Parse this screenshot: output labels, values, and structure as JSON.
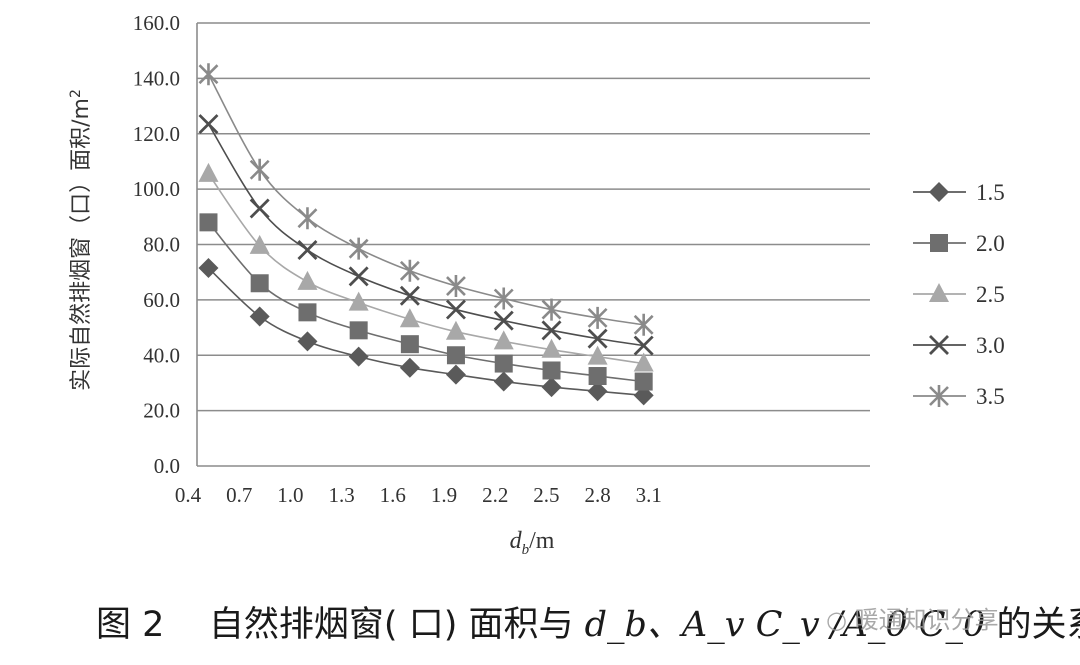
{
  "chart_data": {
    "type": "line",
    "x": [
      0.52,
      0.82,
      1.1,
      1.4,
      1.7,
      1.97,
      2.25,
      2.53,
      2.8,
      3.07
    ],
    "xticks": [
      "0.4",
      "0.7",
      "1.0",
      "1.3",
      "1.6",
      "1.9",
      "2.2",
      "2.5",
      "2.8",
      "3.1"
    ],
    "xlim": [
      0.4,
      3.1
    ],
    "ylim": [
      0,
      160
    ],
    "yticks": [
      "0.0",
      "20.0",
      "40.0",
      "60.0",
      "80.0",
      "100.0",
      "120.0",
      "140.0",
      "160.0"
    ],
    "xlabel": "d",
    "xlabel_sub": "b",
    "xlabel_unit": "/m",
    "ylabel": "实际自然排烟窗（口）面积/m",
    "ylabel_sup": "2",
    "grid": "horizontal",
    "legend_position": "right",
    "series": [
      {
        "name": "1.5",
        "marker": "diamond",
        "color": "#5a5a5a",
        "values": [
          71.5,
          54,
          45,
          39.5,
          35.5,
          33,
          30.5,
          28.5,
          27,
          25.5
        ]
      },
      {
        "name": "2.0",
        "marker": "square",
        "color": "#6e6e6e",
        "values": [
          88,
          66,
          55.5,
          49,
          44,
          40,
          37,
          34.5,
          32.5,
          30.5
        ]
      },
      {
        "name": "2.5",
        "marker": "triangle",
        "color": "#a8a8a8",
        "values": [
          105.5,
          79.5,
          66.5,
          59,
          53,
          48.5,
          45,
          42,
          39.5,
          37
        ]
      },
      {
        "name": "3.0",
        "marker": "x",
        "color": "#4e4e4e",
        "values": [
          123.5,
          93,
          78,
          68.5,
          61.5,
          56.5,
          52.5,
          49,
          46,
          43.5
        ]
      },
      {
        "name": "3.5",
        "marker": "star",
        "color": "#8a8a8a",
        "values": [
          141.5,
          107,
          89.5,
          78.5,
          70.5,
          65,
          60.5,
          56.5,
          53.5,
          51
        ]
      }
    ]
  },
  "caption": {
    "fig_label": "图 2",
    "text": "自然排烟窗( 口) 面积与",
    "math": "d_b、A_v C_v /A_0 C_0",
    "tail": "的关系"
  },
  "watermark": "暖通知识分享"
}
